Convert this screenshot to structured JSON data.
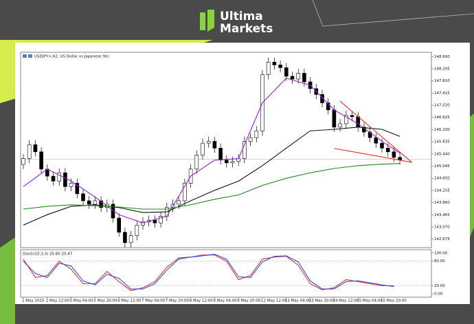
{
  "brand": [
    "Ultima",
    "Markets"
  ],
  "chart_data": [
    {
      "type": "candlestick",
      "title": "USDJPY+,H2:  US Dollar vs Japanese Yen",
      "categories": [
        "1 May 2025",
        null,
        null,
        null,
        "2 May 12:00",
        null,
        null,
        null,
        "5 May 04:00",
        null,
        null,
        null,
        "5 May 20:00",
        null,
        null,
        null,
        "6 May 12:00",
        null,
        null,
        null,
        "7 May 04:00",
        null,
        null,
        null,
        "7 May 20:00",
        null,
        null,
        null,
        "8 May 12:00",
        null,
        null,
        null,
        "9 May 04:00",
        null,
        null,
        null,
        "9 May 20:00",
        null,
        null,
        null,
        "12 May 12:00",
        null,
        null,
        null,
        "13 May 04:00",
        null,
        null,
        null,
        "13 May 20:00",
        null,
        null,
        null,
        "14 May 12:00",
        null,
        null,
        null,
        "15 May 04:00",
        null,
        null,
        null,
        "15 May 20:00",
        null,
        null,
        null
      ],
      "open": [
        145.1,
        145.29,
        145.74,
        145.51,
        144.95,
        144.72,
        144.56,
        144.83,
        144.38,
        144.49,
        144.15,
        143.92,
        143.81,
        143.92,
        143.7,
        143.81,
        143.36,
        142.9,
        142.56,
        142.79,
        143.13,
        143.24,
        143.29,
        143.2,
        143.42,
        143.7,
        143.81,
        143.92,
        144.49,
        144.95,
        145.4,
        145.79,
        145.85,
        145.63,
        145.24,
        145.15,
        145.2,
        145.29,
        145.85,
        145.97,
        146.19,
        148.01,
        148.42,
        148.33,
        148.24,
        147.96,
        147.87,
        148.06,
        147.78,
        147.56,
        147.37,
        147.1,
        146.87,
        146.31,
        146.42,
        146.69,
        146.65,
        146.31,
        146.15,
        145.97,
        145.79,
        145.63,
        145.51,
        145.33
      ],
      "high": [
        145.44,
        145.89,
        145.89,
        145.66,
        145.1,
        144.87,
        144.98,
        144.98,
        144.64,
        144.64,
        144.3,
        144.07,
        144.07,
        144.07,
        143.96,
        143.96,
        143.51,
        143.05,
        142.94,
        143.28,
        143.39,
        143.44,
        143.44,
        143.57,
        143.85,
        143.96,
        144.07,
        144.64,
        145.1,
        145.55,
        145.94,
        146.0,
        146.0,
        145.78,
        145.39,
        145.35,
        145.44,
        146.0,
        146.12,
        146.34,
        148.16,
        148.57,
        148.57,
        148.48,
        148.39,
        148.11,
        148.21,
        148.21,
        147.93,
        147.71,
        147.52,
        147.25,
        147.02,
        146.57,
        146.84,
        146.84,
        146.8,
        146.46,
        146.3,
        146.12,
        145.94,
        145.78,
        145.66,
        145.48
      ],
      "low": [
        144.95,
        145.14,
        145.36,
        144.8,
        144.57,
        144.41,
        144.41,
        144.23,
        144.23,
        144.0,
        143.77,
        143.66,
        143.66,
        143.55,
        143.55,
        143.21,
        142.75,
        142.41,
        142.41,
        142.64,
        142.98,
        143.09,
        143.05,
        143.05,
        143.27,
        143.55,
        143.66,
        143.77,
        144.34,
        144.8,
        145.25,
        145.64,
        145.48,
        145.09,
        145.0,
        145.0,
        145.05,
        145.14,
        145.7,
        145.82,
        146.04,
        147.86,
        148.18,
        148.09,
        147.81,
        147.72,
        147.72,
        147.63,
        147.41,
        147.22,
        146.95,
        146.72,
        146.16,
        146.16,
        146.27,
        146.5,
        146.16,
        146.0,
        145.82,
        145.64,
        145.48,
        145.36,
        145.18,
        145.09
      ],
      "close": [
        145.29,
        145.74,
        145.51,
        144.95,
        144.72,
        144.56,
        144.83,
        144.38,
        144.49,
        144.15,
        143.92,
        143.81,
        143.92,
        143.7,
        143.81,
        143.36,
        142.9,
        142.56,
        142.79,
        143.13,
        143.24,
        143.29,
        143.2,
        143.42,
        143.7,
        143.81,
        143.92,
        144.49,
        144.95,
        145.4,
        145.79,
        145.85,
        145.63,
        145.24,
        145.15,
        145.2,
        145.29,
        145.85,
        145.97,
        146.19,
        148.01,
        148.42,
        148.33,
        148.24,
        147.96,
        147.87,
        148.06,
        147.78,
        147.56,
        147.37,
        147.1,
        146.87,
        146.31,
        146.42,
        146.69,
        146.65,
        146.31,
        146.15,
        145.97,
        145.79,
        145.63,
        145.51,
        145.33,
        145.24
      ],
      "up_color": "#ffffff",
      "down_color": "#000000",
      "ylim": [
        142.4,
        148.74
      ],
      "yticks": [
        {
          "value": 148.6,
          "label": "148.600"
        },
        {
          "value": 148.205,
          "label": "148.205"
        },
        {
          "value": 147.81,
          "label": "147.810"
        },
        {
          "value": 147.415,
          "label": "147.415"
        },
        {
          "value": 147.02,
          "label": "147.020"
        },
        {
          "value": 146.625,
          "label": "146.625"
        },
        {
          "value": 146.23,
          "label": "146.230"
        },
        {
          "value": 145.835,
          "label": "145.835"
        },
        {
          "value": 145.44,
          "label": "145.440"
        },
        {
          "value": 145.045,
          "label": "145.045"
        },
        {
          "value": 144.65,
          "label": "144.650"
        },
        {
          "value": 144.255,
          "label": "144.255"
        },
        {
          "value": 143.86,
          "label": "143.860"
        },
        {
          "value": 143.465,
          "label": "143.465"
        },
        {
          "value": 143.07,
          "label": "143.070"
        },
        {
          "value": 142.675,
          "label": "142.675"
        }
      ],
      "hline": 145.27,
      "series": [
        {
          "color": "#9b1fd1",
          "x": [
            0,
            4,
            8,
            12,
            16,
            20,
            24,
            28,
            32,
            36,
            40,
            44,
            48,
            52,
            56,
            60,
            63
          ],
          "values": [
            144.38,
            144.95,
            144.56,
            144.04,
            143.47,
            143.2,
            143.42,
            144.72,
            145.24,
            145.29,
            147.1,
            147.9,
            147.67,
            146.87,
            146.42,
            145.85,
            145.47
          ]
        },
        {
          "color": "#111111",
          "x": [
            0,
            4,
            8,
            12,
            16,
            20,
            24,
            28,
            32,
            36,
            40,
            44,
            48,
            52,
            56,
            60,
            63
          ],
          "values": [
            143.13,
            143.47,
            143.74,
            143.79,
            143.7,
            143.54,
            143.56,
            143.92,
            144.26,
            144.56,
            145.06,
            145.63,
            146.19,
            146.24,
            146.31,
            146.24,
            146.01
          ]
        },
        {
          "color": "#1e8a1e",
          "x": [
            0,
            4,
            8,
            12,
            16,
            20,
            24,
            28,
            32,
            36,
            40,
            44,
            48,
            52,
            56,
            60,
            63
          ],
          "values": [
            143.65,
            143.74,
            143.79,
            143.76,
            143.72,
            143.65,
            143.65,
            143.79,
            143.97,
            144.11,
            144.42,
            144.65,
            144.83,
            144.97,
            145.06,
            145.11,
            145.13
          ]
        },
        {
          "color": "#e03030",
          "x": [
            53,
            65
          ],
          "values": [
            147.15,
            145.17
          ]
        },
        {
          "color": "#e03030",
          "x": [
            52,
            65
          ],
          "values": [
            145.62,
            145.17
          ]
        }
      ]
    },
    {
      "type": "line",
      "title": "Stoch(15,3,3) 25.60 20.47",
      "ylim": [
        -8,
        108
      ],
      "yticks": [
        {
          "value": 100,
          "label": "100.00"
        },
        {
          "value": 80,
          "label": "80.00"
        },
        {
          "value": 20,
          "label": "20.00"
        },
        {
          "value": 0,
          "label": "0.00"
        }
      ],
      "levels": [
        80,
        20
      ],
      "series": [
        {
          "color": "#e03030",
          "x": [
            0,
            2,
            4,
            6,
            8,
            10,
            12,
            14,
            16,
            18,
            20,
            22,
            24,
            26,
            28,
            30,
            32,
            34,
            36,
            38,
            40,
            42,
            44,
            46,
            48,
            50,
            52,
            54,
            56,
            58,
            60,
            62
          ],
          "values": [
            85,
            40,
            45,
            80,
            60,
            25,
            25,
            55,
            30,
            8,
            15,
            30,
            65,
            88,
            90,
            95,
            95,
            80,
            35,
            45,
            85,
            90,
            92,
            70,
            25,
            10,
            15,
            35,
            30,
            25,
            20,
            20
          ]
        },
        {
          "color": "#3050e0",
          "x": [
            0,
            2,
            4,
            6,
            8,
            10,
            12,
            14,
            16,
            18,
            20,
            22,
            24,
            26,
            28,
            30,
            32,
            34,
            36,
            38,
            40,
            42,
            44,
            46,
            48,
            50,
            52,
            54,
            56,
            58,
            60,
            62
          ],
          "values": [
            80,
            50,
            40,
            75,
            68,
            32,
            22,
            48,
            38,
            12,
            12,
            25,
            58,
            85,
            90,
            93,
            97,
            85,
            42,
            40,
            78,
            92,
            93,
            78,
            32,
            12,
            12,
            30,
            32,
            27,
            22,
            18
          ]
        }
      ]
    }
  ]
}
